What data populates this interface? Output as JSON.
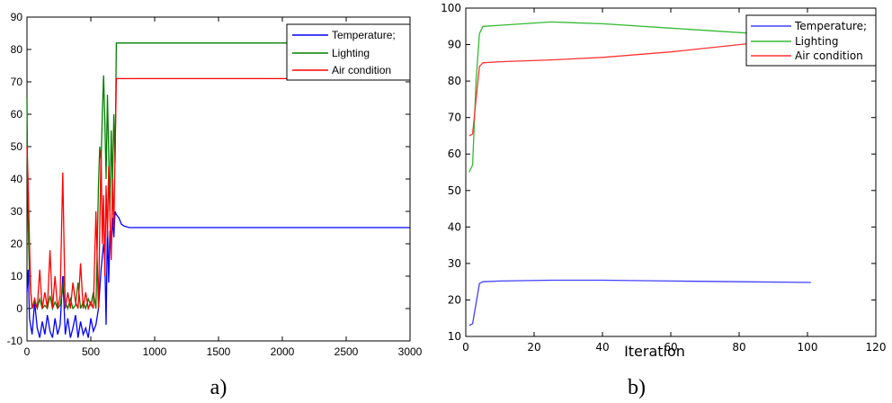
{
  "chart_data": [
    {
      "type": "line",
      "title": "",
      "xlabel": "",
      "ylabel": "",
      "caption": "a)",
      "xlim": [
        0,
        3000
      ],
      "ylim": [
        -10,
        90
      ],
      "xticks": [
        "0",
        "500",
        "1000",
        "1500",
        "2000",
        "2500",
        "3000"
      ],
      "yticks": [
        "-10",
        "0",
        "10",
        "20",
        "30",
        "40",
        "50",
        "60",
        "70",
        "80",
        "90"
      ],
      "legend_position": "top-right",
      "series": [
        {
          "name": "Temperature;",
          "color": "#0000ff",
          "x": [
            0,
            10,
            20,
            40,
            60,
            80,
            100,
            120,
            140,
            160,
            180,
            200,
            220,
            240,
            260,
            280,
            300,
            320,
            340,
            360,
            380,
            400,
            420,
            440,
            460,
            480,
            500,
            520,
            540,
            560,
            580,
            600,
            610,
            620,
            630,
            640,
            650,
            660,
            670,
            680,
            690,
            700,
            720,
            740,
            760,
            800,
            850,
            900,
            1000,
            1500,
            2000,
            2500,
            3000
          ],
          "values": [
            5,
            12,
            -3,
            -8,
            2,
            -6,
            -9,
            -4,
            -8,
            -2,
            -7,
            -9,
            -3,
            -8,
            -5,
            10,
            -8,
            -3,
            -9,
            -6,
            -2,
            -9,
            -4,
            -8,
            -6,
            -9,
            -3,
            -7,
            -5,
            0,
            12,
            20,
            15,
            -5,
            26,
            8,
            24,
            18,
            28,
            22,
            30,
            29,
            28,
            26,
            25.5,
            25,
            25,
            25,
            25,
            25,
            25,
            25,
            25
          ]
        },
        {
          "name": "Lighting",
          "color": "#008000",
          "x": [
            0,
            5,
            10,
            20,
            30,
            40,
            60,
            80,
            100,
            120,
            140,
            160,
            180,
            200,
            220,
            240,
            260,
            280,
            290,
            300,
            320,
            340,
            360,
            380,
            400,
            420,
            440,
            460,
            480,
            500,
            520,
            540,
            560,
            570,
            580,
            590,
            600,
            610,
            620,
            630,
            640,
            650,
            660,
            670,
            680,
            690,
            700,
            750,
            1000,
            1500,
            2000,
            2500,
            3000
          ],
          "values": [
            65,
            40,
            25,
            10,
            5,
            0,
            2,
            0,
            3,
            0,
            1,
            0,
            4,
            0,
            2,
            0,
            1,
            6,
            10,
            2,
            0,
            3,
            0,
            1,
            8,
            0,
            2,
            0,
            3,
            1,
            5,
            0,
            38,
            50,
            45,
            60,
            72,
            58,
            40,
            66,
            48,
            30,
            55,
            38,
            60,
            45,
            82,
            82,
            82,
            82,
            82,
            82,
            82
          ]
        },
        {
          "name": "Air condition",
          "color": "#ff0000",
          "x": [
            0,
            10,
            20,
            30,
            40,
            60,
            80,
            100,
            120,
            140,
            160,
            180,
            200,
            220,
            240,
            260,
            280,
            290,
            300,
            320,
            340,
            360,
            380,
            400,
            420,
            440,
            460,
            480,
            500,
            520,
            540,
            560,
            580,
            590,
            600,
            610,
            620,
            630,
            640,
            650,
            660,
            670,
            680,
            690,
            700,
            750,
            1000,
            1500,
            2000,
            2500,
            3000
          ],
          "values": [
            50,
            38,
            20,
            5,
            0,
            3,
            0,
            12,
            0,
            5,
            0,
            18,
            0,
            10,
            0,
            4,
            42,
            20,
            0,
            5,
            0,
            8,
            2,
            0,
            14,
            0,
            5,
            0,
            2,
            0,
            30,
            0,
            49,
            20,
            35,
            10,
            38,
            22,
            44,
            28,
            15,
            40,
            25,
            48,
            71,
            71,
            71,
            71,
            71,
            71,
            71
          ]
        }
      ]
    },
    {
      "type": "line",
      "title": "",
      "xlabel": "Iteration",
      "ylabel": "",
      "caption": "b)",
      "xlim": [
        0,
        120
      ],
      "ylim": [
        10,
        100
      ],
      "xticks": [
        "0",
        "20",
        "40",
        "60",
        "80",
        "100",
        "120"
      ],
      "yticks": [
        "10",
        "20",
        "30",
        "40",
        "50",
        "60",
        "70",
        "80",
        "90",
        "100"
      ],
      "legend_position": "top-right",
      "series": [
        {
          "name": "Temperature;",
          "color": "#4040ff",
          "x": [
            1,
            2,
            3,
            4,
            5,
            10,
            25,
            40,
            60,
            80,
            101
          ],
          "values": [
            13,
            13.5,
            19,
            24.5,
            25,
            25.2,
            25.4,
            25.4,
            25.2,
            25,
            24.8
          ]
        },
        {
          "name": "Lighting",
          "color": "#33bb33",
          "x": [
            1,
            2,
            3,
            4,
            5,
            10,
            25,
            40,
            60,
            80,
            101
          ],
          "values": [
            55,
            57,
            80,
            93,
            95,
            95.3,
            96.2,
            95.7,
            94.5,
            93.3,
            92
          ]
        },
        {
          "name": "Air condition",
          "color": "#ff3333",
          "x": [
            1,
            2,
            3,
            4,
            5,
            10,
            25,
            40,
            60,
            80,
            101
          ],
          "values": [
            65,
            65.5,
            75,
            84,
            85,
            85.3,
            85.8,
            86.5,
            88,
            90,
            92
          ]
        }
      ]
    }
  ]
}
